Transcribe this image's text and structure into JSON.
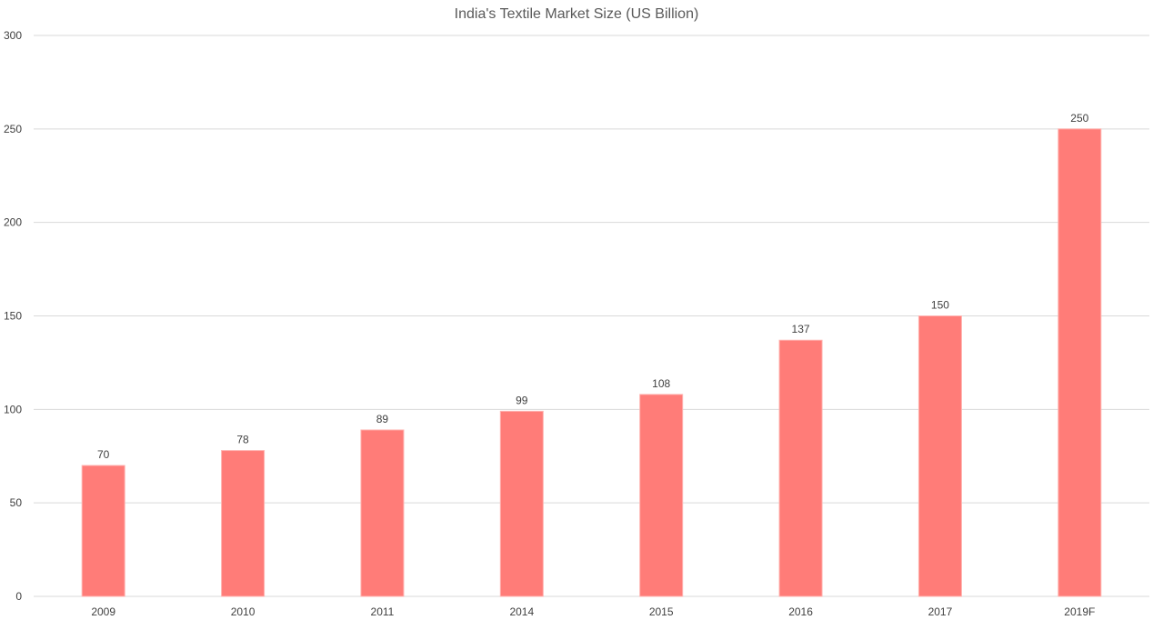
{
  "chart_data": {
    "type": "bar",
    "title": "India's Textile Market Size (US Billion)",
    "xlabel": "",
    "ylabel": "",
    "categories": [
      "2009",
      "2010",
      "2011",
      "2014",
      "2015",
      "2016",
      "2017",
      "2019F"
    ],
    "values": [
      70,
      78,
      89,
      99,
      108,
      137,
      150,
      250
    ],
    "ylim": [
      0,
      300
    ],
    "yticks": [
      0,
      50,
      100,
      150,
      200,
      250,
      300
    ],
    "grid": true,
    "legend": "none",
    "colors": {
      "bar": "#ff7c78",
      "bar_edge": "#ffb3b0"
    }
  }
}
